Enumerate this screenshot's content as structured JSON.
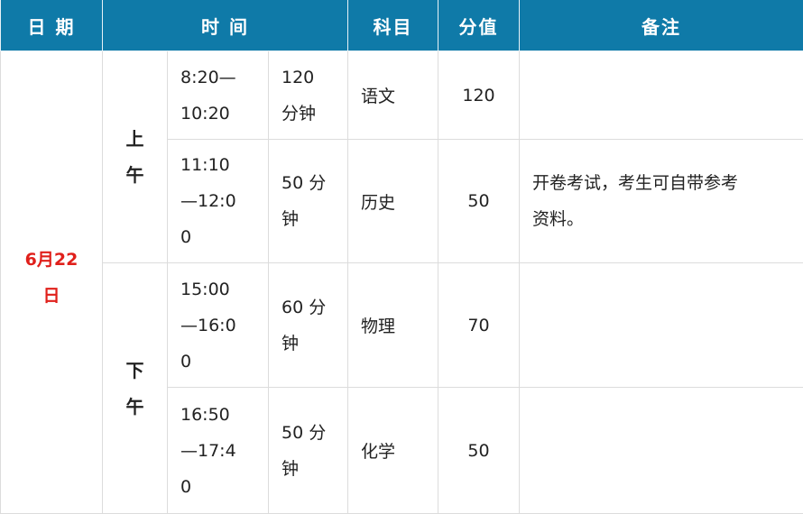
{
  "header": {
    "date": "日 期",
    "time": "时 间",
    "subject": "科目",
    "score": "分值",
    "note": "备注"
  },
  "date": [
    "6月22",
    "日"
  ],
  "morning": [
    "上",
    "午"
  ],
  "afternoon": [
    "下",
    "午"
  ],
  "rows": [
    {
      "time": [
        "8:20—",
        "10:20"
      ],
      "duration": [
        "120",
        "分钟"
      ],
      "subject": "语文",
      "score": "120",
      "note": []
    },
    {
      "time": [
        "11:10",
        "—12:0",
        "0"
      ],
      "duration": [
        "50 分",
        "钟"
      ],
      "subject": "历史",
      "score": "50",
      "note": [
        "开卷考试，考生可自带参考",
        "资料。"
      ]
    },
    {
      "time": [
        "15:00",
        "—16:0",
        "0"
      ],
      "duration": [
        "60 分",
        "钟"
      ],
      "subject": "物理",
      "score": "70",
      "note": []
    },
    {
      "time": [
        "16:50",
        "—17:4",
        "0"
      ],
      "duration": [
        "50 分",
        "钟"
      ],
      "subject": "化学",
      "score": "50",
      "note": []
    }
  ],
  "colors": {
    "header_bg": "#0f7aa8",
    "date_text": "#e0201b"
  }
}
